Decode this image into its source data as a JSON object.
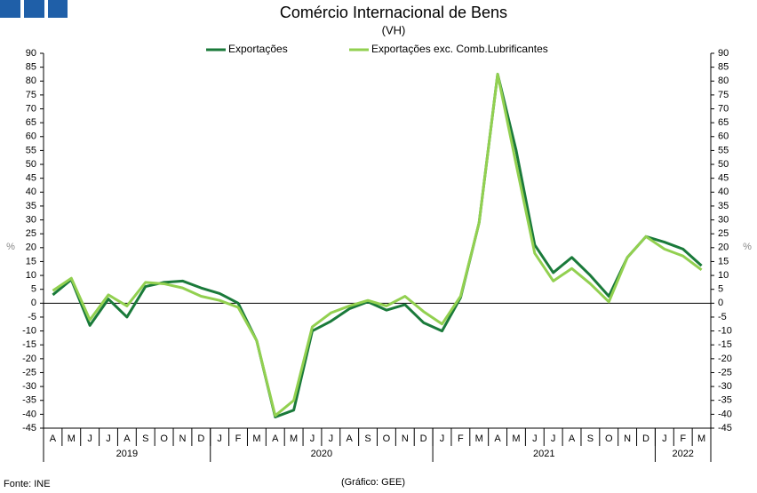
{
  "chart_data": {
    "type": "line",
    "title": "Comércio Internacional de Bens",
    "subtitle": "(VH)",
    "y_label": "%",
    "y2_label": "%",
    "source": "Fonte: INE",
    "credit": "(Gráfico: GEE)",
    "categories": [
      "A",
      "M",
      "J",
      "J",
      "A",
      "S",
      "O",
      "N",
      "D",
      "J",
      "F",
      "M",
      "A",
      "M",
      "J",
      "J",
      "A",
      "S",
      "O",
      "N",
      "D",
      "J",
      "F",
      "M",
      "A",
      "M",
      "J",
      "J",
      "A",
      "S",
      "O",
      "N",
      "D",
      "J",
      "F",
      "M"
    ],
    "groups": [
      {
        "label": "2019",
        "span": 9
      },
      {
        "label": "2020",
        "span": 12
      },
      {
        "label": "2021",
        "span": 12
      },
      {
        "label": "2022",
        "span": 3
      }
    ],
    "series": [
      {
        "name": "Exportações",
        "color": "#1a7a3a",
        "values": [
          3,
          8.5,
          -8,
          1.5,
          -5,
          6,
          7.5,
          8,
          5.5,
          3.5,
          0,
          -13.5,
          -41,
          -38.5,
          -10,
          -6.5,
          -2,
          0.5,
          -2.5,
          -0.5,
          -7,
          -10,
          2,
          29,
          82.5,
          55,
          21,
          11,
          16.5,
          10,
          2.5,
          16.5,
          24,
          22,
          19.5,
          13.5
        ]
      },
      {
        "name": "Exportações exc. Comb.Lubrificantes",
        "color": "#92d050",
        "values": [
          4.5,
          9,
          -6,
          3,
          -1,
          7.5,
          7,
          5.5,
          2.5,
          1,
          -1.5,
          -13.5,
          -40.5,
          -35,
          -8.5,
          -3.5,
          -1,
          1,
          -1,
          2.5,
          -3,
          -7.5,
          2.5,
          29,
          82.5,
          50,
          18,
          8,
          12.5,
          7,
          0.5,
          16.5,
          24,
          19.5,
          17,
          12
        ]
      }
    ],
    "ylim": [
      -45,
      90
    ],
    "yticks": [
      -45,
      -40,
      -35,
      -30,
      -25,
      -20,
      -15,
      -10,
      -5,
      0,
      5,
      10,
      15,
      20,
      25,
      30,
      35,
      40,
      45,
      50,
      55,
      60,
      65,
      70,
      75,
      80,
      85,
      90
    ],
    "y2lim": [
      -45,
      90
    ],
    "y2ticks": [
      -45,
      -40,
      -35,
      -30,
      -25,
      -20,
      -15,
      -10,
      -5,
      0,
      5,
      10,
      15,
      20,
      25,
      30,
      35,
      40,
      45,
      50,
      55,
      60,
      65,
      70,
      75,
      80,
      85,
      90
    ]
  }
}
